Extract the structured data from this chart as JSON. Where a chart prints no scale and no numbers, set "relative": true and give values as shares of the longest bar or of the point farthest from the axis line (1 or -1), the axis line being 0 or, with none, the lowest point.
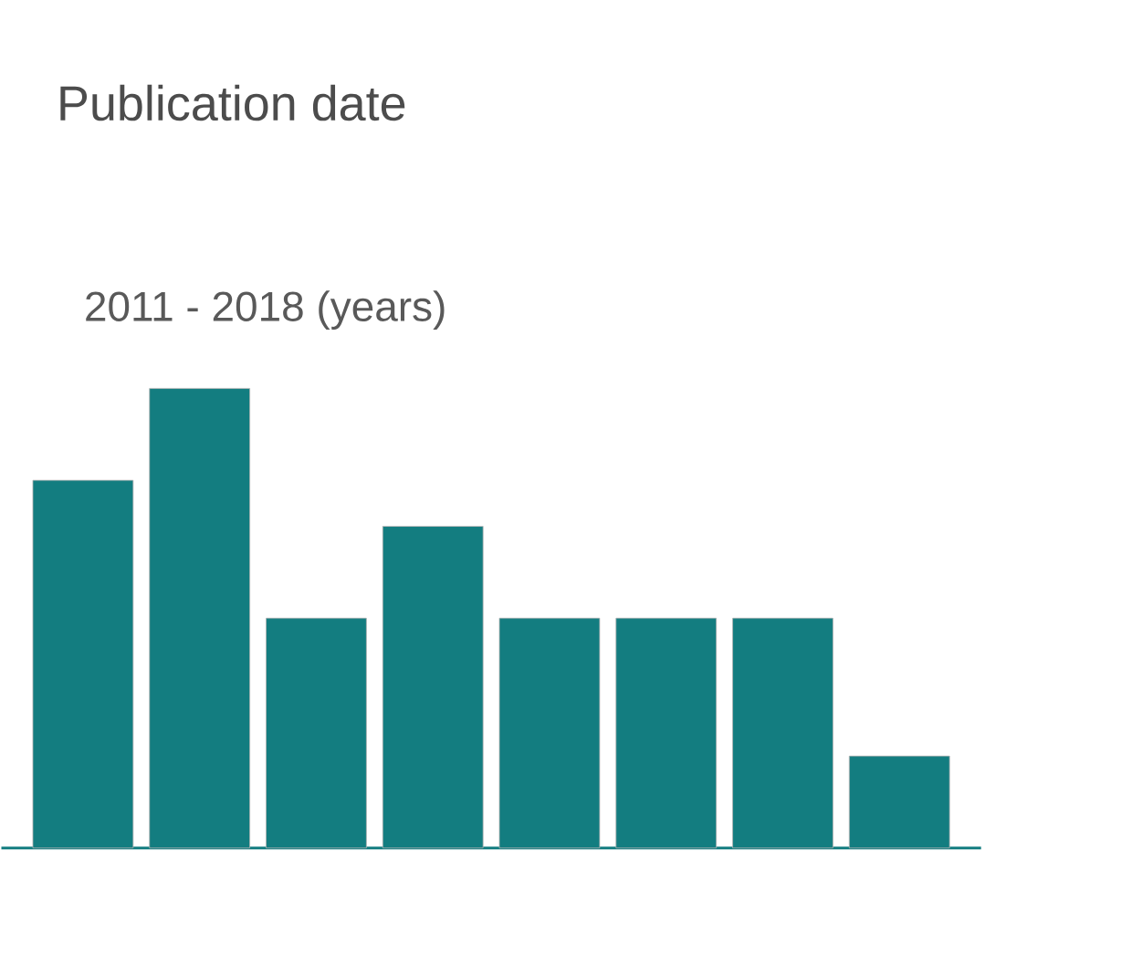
{
  "chart_data": {
    "type": "bar",
    "title": "Publication date",
    "subtitle": "2011 - 2018 (years)",
    "categories": [
      null,
      null,
      null,
      null,
      null,
      null,
      null,
      null
    ],
    "values": [
      0.8,
      1,
      0.5,
      0.7,
      0.5,
      0.5,
      0.5,
      0.2
    ],
    "color": "#137d80",
    "relative": true
  }
}
